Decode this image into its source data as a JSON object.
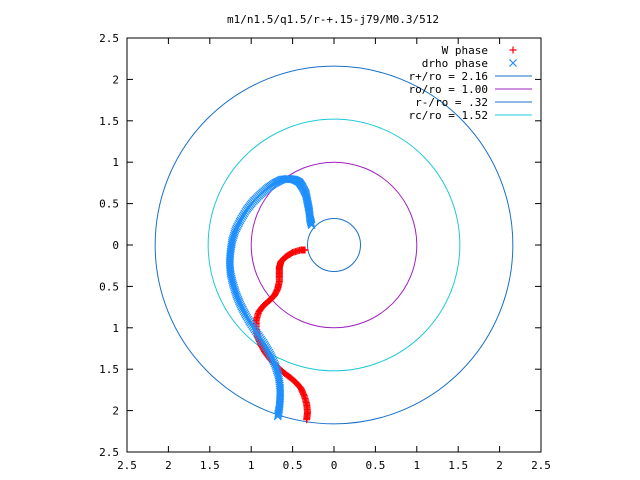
{
  "chart_data": {
    "type": "scatter",
    "title": "m1/n1.5/q1.5/r-+.15-j79/M0.3/512",
    "xlabel": "",
    "ylabel": "",
    "xlim": [
      -2.5,
      2.5
    ],
    "ylim": [
      -2.5,
      2.5
    ],
    "x_tick_values": [
      -2.5,
      -2,
      -1.5,
      -1,
      -0.5,
      0,
      0.5,
      1,
      1.5,
      2,
      2.5
    ],
    "x_tick_labels": [
      "2.5",
      "2",
      "1.5",
      "1",
      "0.5",
      "0",
      "0.5",
      "1",
      "1.5",
      "2",
      "2.5"
    ],
    "y_tick_values": [
      2.5,
      2,
      1.5,
      1,
      0.5,
      0,
      -0.5,
      -1,
      -1.5,
      -2,
      -2.5
    ],
    "y_tick_labels": [
      "2.5",
      "2",
      "1.5",
      "1",
      "0.5",
      "0",
      "0.5",
      "1",
      "1.5",
      "2",
      "2.5"
    ],
    "grid": false,
    "legend_position": "top-right",
    "series": [
      {
        "name": "W phase",
        "kind": "points",
        "marker": "plus",
        "color": "#ff0000",
        "x": [
          -0.35,
          -0.4,
          -0.5,
          -0.58,
          -0.64,
          -0.66,
          -0.66,
          -0.66,
          -0.68,
          -0.72,
          -0.78,
          -0.85,
          -0.91,
          -0.94,
          -0.94,
          -0.92,
          -0.88,
          -0.83,
          -0.77,
          -0.7,
          -0.61,
          -0.53,
          -0.46,
          -0.4,
          -0.36,
          -0.33,
          -0.32,
          -0.33
        ],
        "y": [
          -0.06,
          -0.06,
          -0.09,
          -0.14,
          -0.2,
          -0.27,
          -0.35,
          -0.44,
          -0.53,
          -0.61,
          -0.67,
          -0.73,
          -0.81,
          -0.91,
          -1.02,
          -1.12,
          -1.21,
          -1.3,
          -1.38,
          -1.46,
          -1.54,
          -1.6,
          -1.66,
          -1.73,
          -1.82,
          -1.92,
          -2.02,
          -2.11
        ]
      },
      {
        "name": "drho phase",
        "kind": "points",
        "marker": "x",
        "color": "#1f8fff",
        "x": [
          -0.27,
          -0.29,
          -0.3,
          -0.32,
          -0.34,
          -0.38,
          -0.42,
          -0.48,
          -0.55,
          -0.63,
          -0.71,
          -0.8,
          -0.89,
          -0.98,
          -1.06,
          -1.13,
          -1.19,
          -1.23,
          -1.25,
          -1.26,
          -1.25,
          -1.22,
          -1.18,
          -1.13,
          -1.07,
          -1.0,
          -0.92,
          -0.84,
          -0.77,
          -0.71,
          -0.67,
          -0.65,
          -0.65,
          -0.66,
          -0.68
        ],
        "y": [
          0.24,
          0.32,
          0.42,
          0.52,
          0.62,
          0.7,
          0.76,
          0.79,
          0.8,
          0.79,
          0.75,
          0.69,
          0.61,
          0.52,
          0.42,
          0.3,
          0.18,
          0.05,
          -0.08,
          -0.21,
          -0.34,
          -0.47,
          -0.6,
          -0.72,
          -0.84,
          -0.96,
          -1.08,
          -1.2,
          -1.32,
          -1.45,
          -1.58,
          -1.72,
          -1.85,
          -1.97,
          -2.07
        ]
      },
      {
        "name": "r+/ro = 2.16",
        "kind": "circle",
        "radius": 2.16,
        "color": "#1a70c8"
      },
      {
        "name": "ro/ro = 1.00",
        "kind": "circle",
        "radius": 1.0,
        "color": "#a020c0"
      },
      {
        "name": "r-/ro = .32",
        "kind": "circle",
        "radius": 0.32,
        "color": "#1a70c8"
      },
      {
        "name": "rc/ro = 1.52",
        "kind": "circle",
        "radius": 1.52,
        "color": "#20c8d8"
      }
    ]
  }
}
